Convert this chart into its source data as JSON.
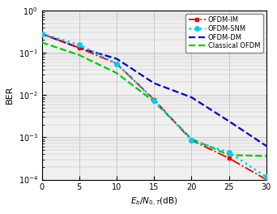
{
  "title": "",
  "xlabel": "$E_b/N_{0,T}$(dB)",
  "ylabel": "BER",
  "xlim": [
    0,
    30
  ],
  "ylim_log": [
    -4,
    0
  ],
  "x": [
    0,
    5,
    10,
    15,
    20,
    25,
    30
  ],
  "ofdm_im": [
    0.28,
    0.13,
    0.055,
    0.0078,
    0.00085,
    0.00032,
    0.0001
  ],
  "ofdm_snm": [
    0.28,
    0.155,
    0.055,
    0.0075,
    0.00085,
    0.00044,
    0.000115
  ],
  "ofdm_dm": [
    0.28,
    0.13,
    0.072,
    0.019,
    0.0088,
    0.0024,
    0.00062
  ],
  "classical_ofdm": [
    0.175,
    0.088,
    0.033,
    0.007,
    0.00092,
    0.00038,
    0.00036
  ],
  "colors": {
    "ofdm_im": "#ee0000",
    "ofdm_snm": "#00ccee",
    "ofdm_dm": "#0000cc",
    "classical_ofdm": "#00cc00"
  },
  "legend_labels": [
    "OFDM-IM",
    "OFDM-SNM",
    "OFDM-DM",
    "Classical OFDM"
  ],
  "grid_color": "#bbbbbb",
  "bg_color": "#f0f0f0"
}
